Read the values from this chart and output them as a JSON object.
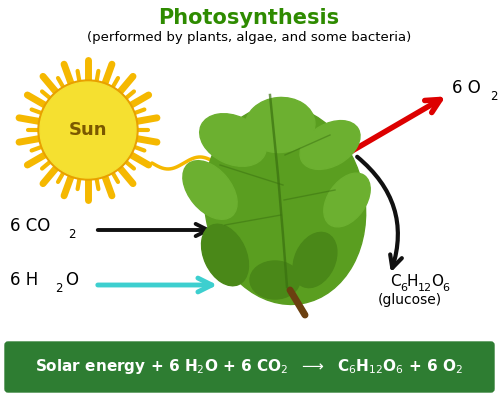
{
  "title": "Photosynthesis",
  "subtitle": "(performed by plants, algae, and some bacteria)",
  "title_color": "#2e8b00",
  "subtitle_color": "#000000",
  "sun_label": "Sun",
  "sun_color": "#f5e030",
  "sun_ray_color": "#f5b800",
  "sun_border_color": "#e8a000",
  "arrow_co2_color": "#111111",
  "arrow_h2o_color": "#3dcfcf",
  "arrow_o2_color": "#dd0000",
  "arrow_glucose_color": "#111111",
  "arrow_sun_color": "#f5b800",
  "box_bg_color": "#2e7d32",
  "box_text_color": "#ffffff",
  "background_color": "#ffffff",
  "leaf_main_color": "#5a9e20",
  "leaf_dark_color": "#4a8818",
  "leaf_mid_color": "#6cb030",
  "leaf_vein_color": "#3a7010"
}
